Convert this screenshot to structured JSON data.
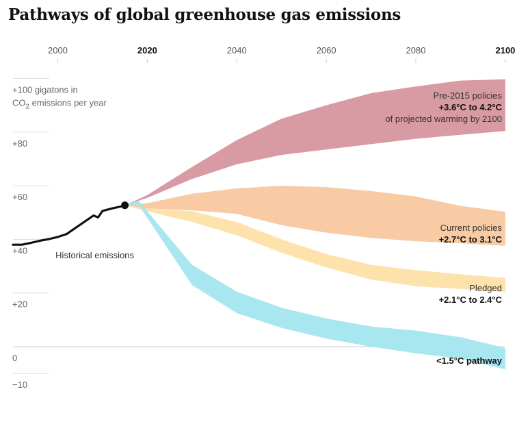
{
  "title": "Pathways of global greenhouse gas emissions",
  "chart_data": {
    "type": "area",
    "title": "Pathways of global greenhouse gas emissions",
    "xlim": [
      1990,
      2100
    ],
    "ylim": [
      -10,
      100
    ],
    "x_ticks": [
      {
        "value": 2000,
        "label": "2000",
        "bold": false
      },
      {
        "value": 2020,
        "label": "2020",
        "bold": true
      },
      {
        "value": 2040,
        "label": "2040",
        "bold": false
      },
      {
        "value": 2060,
        "label": "2060",
        "bold": false
      },
      {
        "value": 2080,
        "label": "2080",
        "bold": false
      },
      {
        "value": 2100,
        "label": "2100",
        "bold": true
      }
    ],
    "y_ticks": [
      {
        "value": 100,
        "label_line1": "+100 gigatons in",
        "label_line2": "CO",
        "label_sub": "2",
        "label_rest": " emissions per year"
      },
      {
        "value": 80,
        "label": "+80"
      },
      {
        "value": 60,
        "label": "+60"
      },
      {
        "value": 40,
        "label": "+40"
      },
      {
        "value": 20,
        "label": "+20"
      },
      {
        "value": 0,
        "label": "0"
      },
      {
        "value": -10,
        "label": "−10"
      }
    ],
    "historical": {
      "label": "Historical emissions",
      "color": "#111111",
      "points": [
        [
          1990,
          38.0
        ],
        [
          1992,
          38.0
        ],
        [
          1994,
          38.7
        ],
        [
          1996,
          39.5
        ],
        [
          1998,
          40.1
        ],
        [
          2000,
          40.9
        ],
        [
          2002,
          42.0
        ],
        [
          2004,
          44.3
        ],
        [
          2006,
          46.6
        ],
        [
          2008,
          48.9
        ],
        [
          2009,
          48.2
        ],
        [
          2010,
          50.6
        ],
        [
          2012,
          51.5
        ],
        [
          2014,
          52.2
        ],
        [
          2015,
          52.7
        ]
      ],
      "endpoint": [
        2015,
        52.7
      ]
    },
    "series": [
      {
        "name": "Pre-2015 policies",
        "label_lines": [
          {
            "text": "Pre-2015 policies",
            "bold": false
          },
          {
            "text": "+3.6°C to 4.2°C",
            "bold": true
          },
          {
            "text": "of projected warming by 2100",
            "bold": false
          }
        ],
        "color": "#d6959e",
        "upper": [
          [
            2015,
            52.7
          ],
          [
            2020,
            56.5
          ],
          [
            2030,
            67.0
          ],
          [
            2040,
            77.0
          ],
          [
            2050,
            85.0
          ],
          [
            2060,
            90.0
          ],
          [
            2070,
            94.5
          ],
          [
            2080,
            97.0
          ],
          [
            2090,
            99.2
          ],
          [
            2100,
            99.7
          ]
        ],
        "lower": [
          [
            2015,
            52.7
          ],
          [
            2020,
            55.5
          ],
          [
            2030,
            62.5
          ],
          [
            2040,
            68.0
          ],
          [
            2050,
            71.5
          ],
          [
            2060,
            73.5
          ],
          [
            2070,
            75.5
          ],
          [
            2080,
            77.5
          ],
          [
            2090,
            79.0
          ],
          [
            2100,
            80.4
          ]
        ]
      },
      {
        "name": "Current policies",
        "label_lines": [
          {
            "text": "Current policies",
            "bold": false
          },
          {
            "text": "+2.7°C to 3.1°C",
            "bold": true
          }
        ],
        "color": "#f8c8a0",
        "upper": [
          [
            2015,
            52.7
          ],
          [
            2020,
            53.5
          ],
          [
            2030,
            57.0
          ],
          [
            2040,
            59.0
          ],
          [
            2050,
            60.0
          ],
          [
            2060,
            59.5
          ],
          [
            2070,
            58.0
          ],
          [
            2080,
            56.0
          ],
          [
            2090,
            52.5
          ],
          [
            2100,
            50.3
          ]
        ],
        "lower": [
          [
            2015,
            52.7
          ],
          [
            2020,
            51.5
          ],
          [
            2030,
            50.8
          ],
          [
            2040,
            49.5
          ],
          [
            2050,
            45.3
          ],
          [
            2060,
            42.5
          ],
          [
            2070,
            40.5
          ],
          [
            2080,
            39.3
          ],
          [
            2090,
            38.5
          ],
          [
            2100,
            37.6
          ]
        ]
      },
      {
        "name": "Pledged",
        "label_lines": [
          {
            "text": "Pledged",
            "bold": false
          },
          {
            "text": "+2.1°C to 2.4°C",
            "bold": true
          }
        ],
        "color": "#fde1a6",
        "upper": [
          [
            2015,
            52.7
          ],
          [
            2020,
            51.5
          ],
          [
            2030,
            50.5
          ],
          [
            2040,
            46.5
          ],
          [
            2050,
            40.0
          ],
          [
            2060,
            34.5
          ],
          [
            2070,
            30.5
          ],
          [
            2080,
            28.5
          ],
          [
            2090,
            27.0
          ],
          [
            2100,
            25.6
          ]
        ],
        "lower": [
          [
            2015,
            52.7
          ],
          [
            2020,
            50.5
          ],
          [
            2030,
            46.5
          ],
          [
            2040,
            41.5
          ],
          [
            2050,
            35.0
          ],
          [
            2060,
            29.5
          ],
          [
            2070,
            25.0
          ],
          [
            2080,
            22.5
          ],
          [
            2090,
            21.5
          ],
          [
            2100,
            20.3
          ]
        ]
      },
      {
        "name": "<1.5°C pathway",
        "label_lines": [
          {
            "text": "<1.5°C pathway",
            "bold": true
          }
        ],
        "color": "#a3e6ef",
        "upper": [
          [
            2015,
            52.7
          ],
          [
            2018,
            54.5
          ],
          [
            2030,
            30.5
          ],
          [
            2040,
            20.5
          ],
          [
            2050,
            14.5
          ],
          [
            2060,
            10.5
          ],
          [
            2070,
            7.5
          ],
          [
            2080,
            6.0
          ],
          [
            2090,
            3.5
          ],
          [
            2100,
            -0.5
          ]
        ],
        "lower": [
          [
            2015,
            52.7
          ],
          [
            2018,
            53.0
          ],
          [
            2030,
            23.0
          ],
          [
            2040,
            12.5
          ],
          [
            2050,
            7.0
          ],
          [
            2060,
            3.0
          ],
          [
            2070,
            0.0
          ],
          [
            2080,
            -2.5
          ],
          [
            2090,
            -4.5
          ],
          [
            2100,
            -8.5
          ]
        ]
      }
    ],
    "grid": true
  }
}
